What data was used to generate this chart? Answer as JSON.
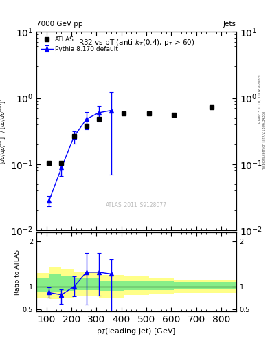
{
  "title_top": "7000 GeV pp",
  "title_right": "Jets",
  "plot_title": "R32 vs pT (anti-k$_T$(0.4), pT > 60)",
  "watermark": "ATLAS_2011_S9128077",
  "rivet_label": "Rivet 3.1.10, 100k events",
  "arxiv_label": "mcplots.cern.ch [arXiv:1306.3436]",
  "xlabel": "p$_T$(leading jet) [GeV]",
  "ylabel_top": "$[d\\sigma/dp_T^{\\rm lead}]^3$",
  "ylabel_bot": "/ $[d\\sigma/dp_T^{\\rm lead}]^2$",
  "atlas_x": [
    110,
    160,
    210,
    260,
    310,
    410,
    510,
    610,
    760
  ],
  "atlas_y": [
    0.104,
    0.104,
    0.265,
    0.38,
    0.48,
    0.58,
    0.58,
    0.56,
    0.73
  ],
  "pythia_x": [
    110,
    160,
    210,
    260,
    310,
    360
  ],
  "pythia_y": [
    0.028,
    0.088,
    0.26,
    0.48,
    0.6,
    0.65
  ],
  "pythia_yerr_lo": [
    0.005,
    0.022,
    0.055,
    0.14,
    0.16,
    0.58
  ],
  "pythia_yerr_hi": [
    0.005,
    0.022,
    0.055,
    0.14,
    0.16,
    0.58
  ],
  "ratio_pythia_x": [
    110,
    160,
    210,
    260,
    310,
    360
  ],
  "ratio_pythia_y": [
    0.87,
    0.82,
    1.0,
    1.32,
    1.32,
    1.28
  ],
  "ratio_pythia_yerr_lo": [
    0.12,
    0.2,
    0.22,
    0.72,
    0.52,
    0.88
  ],
  "ratio_pythia_yerr_hi": [
    0.12,
    0.12,
    0.22,
    0.42,
    0.42,
    0.32
  ],
  "band_edges": [
    60,
    110,
    160,
    210,
    260,
    310,
    410,
    510,
    610,
    760,
    860
  ],
  "band_green_lo": [
    0.88,
    0.88,
    0.9,
    0.92,
    0.92,
    0.9,
    0.92,
    0.92,
    0.94,
    0.94,
    0.94
  ],
  "band_green_hi": [
    1.18,
    1.28,
    1.24,
    1.18,
    1.18,
    1.14,
    1.12,
    1.12,
    1.1,
    1.1,
    1.1
  ],
  "band_yellow_lo": [
    0.74,
    0.72,
    0.76,
    0.8,
    0.8,
    0.76,
    0.82,
    0.84,
    0.86,
    0.86,
    0.86
  ],
  "band_yellow_hi": [
    1.3,
    1.44,
    1.4,
    1.32,
    1.32,
    1.26,
    1.22,
    1.2,
    1.15,
    1.15,
    1.15
  ],
  "main_ylim": [
    0.01,
    10
  ],
  "ratio_ylim": [
    0.45,
    2.2
  ],
  "xlim": [
    60,
    860
  ]
}
